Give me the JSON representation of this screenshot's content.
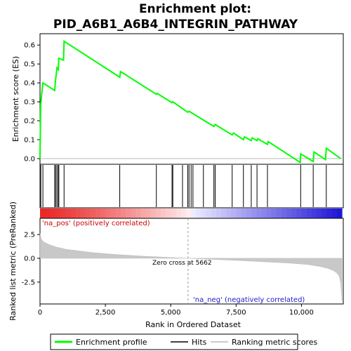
{
  "chart_data": {
    "type": "line",
    "title_line1": "Enrichment plot:",
    "title_line2": "PID_A6B1_A6B4_INTEGRIN_PATHWAY",
    "es_panel": {
      "ylabel": "Enrichment score (ES)",
      "ylim": [
        -0.03,
        0.66
      ],
      "yticks": [
        0.0,
        0.1,
        0.2,
        0.3,
        0.4,
        0.5,
        0.6
      ],
      "ytick_labels": [
        "0.0",
        "0.1",
        "0.2",
        "0.3",
        "0.4",
        "0.5",
        "0.6"
      ],
      "grid": false,
      "line_color": "#00ff00",
      "series": [
        {
          "name": "Enrichment profile",
          "x": [
            0,
            25,
            30,
            110,
            560,
            600,
            650,
            700,
            720,
            900,
            920,
            3050,
            3080,
            4450,
            4480,
            5050,
            5080,
            5650,
            5700,
            6650,
            6700,
            7350,
            7400,
            7780,
            7820,
            8080,
            8120,
            8300,
            8330,
            8700,
            8730,
            9950,
            9970,
            10450,
            10480,
            10920,
            10950,
            11500
          ],
          "y": [
            0.0,
            0.28,
            0.29,
            0.4,
            0.36,
            0.42,
            0.48,
            0.47,
            0.53,
            0.52,
            0.62,
            0.43,
            0.46,
            0.34,
            0.345,
            0.295,
            0.3,
            0.245,
            0.25,
            0.17,
            0.18,
            0.125,
            0.135,
            0.1,
            0.115,
            0.095,
            0.11,
            0.095,
            0.105,
            0.075,
            0.09,
            -0.02,
            0.025,
            -0.015,
            0.035,
            -0.005,
            0.055,
            0.0
          ]
        }
      ]
    },
    "hits": {
      "name": "Hits",
      "x": [
        30,
        110,
        560,
        600,
        650,
        700,
        720,
        920,
        3050,
        4450,
        5050,
        5080,
        5450,
        5650,
        5700,
        5780,
        5850,
        6250,
        6650,
        6700,
        7350,
        7780,
        8080,
        8300,
        8700,
        9970,
        10450,
        10950
      ]
    },
    "rank_panel": {
      "ylabel": "Ranked list metric (PreRanked)",
      "xlabel": "Rank in Ordered Dataset",
      "ylim": [
        -4.8,
        4.2
      ],
      "yticks": [
        -2.5,
        0.0,
        2.5
      ],
      "ytick_labels": [
        "-2.5",
        "0.0",
        "2.5"
      ],
      "xlim": [
        0,
        11600
      ],
      "xticks": [
        0,
        2500,
        5000,
        7500,
        10000
      ],
      "xtick_labels": [
        "0",
        "2,500",
        "5,000",
        "7,500",
        "10,000"
      ],
      "metric_curve": {
        "x": [
          0,
          50,
          150,
          300,
          600,
          1000,
          2000,
          3000,
          4000,
          5000,
          5662,
          6500,
          7500,
          8500,
          9500,
          10200,
          10700,
          11000,
          11200,
          11350,
          11450,
          11500,
          11550
        ],
        "y": [
          2.6,
          2.0,
          1.7,
          1.5,
          1.2,
          0.95,
          0.6,
          0.38,
          0.22,
          0.08,
          0.0,
          -0.1,
          -0.22,
          -0.36,
          -0.5,
          -0.65,
          -0.85,
          -1.05,
          -1.25,
          -1.55,
          -1.9,
          -2.6,
          -4.5
        ]
      },
      "zero_cross_label": "Zero cross at 5662",
      "zero_cross": 5662,
      "pos_label": "'na_pos' (positively correlated)",
      "neg_label": "'na_neg' (negatively correlated)"
    },
    "legend": {
      "items": [
        {
          "label": "Enrichment profile",
          "color": "#00ff00"
        },
        {
          "label": "Hits",
          "color": "#000000"
        },
        {
          "label": "Ranking metric scores",
          "color": "#bbbbbb"
        }
      ]
    }
  }
}
